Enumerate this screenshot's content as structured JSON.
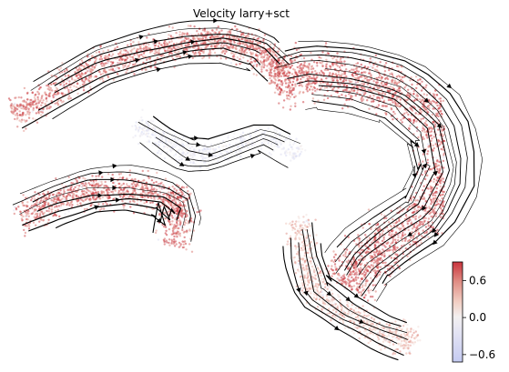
{
  "chart_data": {
    "type": "scatter",
    "title": "Velocity larry+sct",
    "xlabel": "",
    "ylabel": "",
    "embedding": "UMAP-like (no visible axes)",
    "overlay": "velocity streamlines with arrowheads",
    "point_color_encoding": "velocity confidence / score",
    "colorbar": {
      "ticks": [
        0.6,
        0.0,
        -0.6
      ],
      "tick_labels": [
        "0.6",
        "0.0",
        "−0.6"
      ],
      "range": [
        -0.72,
        0.9
      ],
      "colormap": "coolwarm",
      "low_color": "#c5cbf2",
      "mid_color": "#f3f0f0",
      "high_color": "#c9343d"
    },
    "regions": [
      {
        "name": "upper-left lobe",
        "dominant_value": 0.7
      },
      {
        "name": "lower-left lobe",
        "dominant_value": 0.75
      },
      {
        "name": "right arc",
        "dominant_value": 0.8
      },
      {
        "name": "bottom tail",
        "dominant_value": 0.35
      },
      {
        "name": "central junction",
        "dominant_value": -0.2
      }
    ],
    "grid": false,
    "legend": "none"
  }
}
